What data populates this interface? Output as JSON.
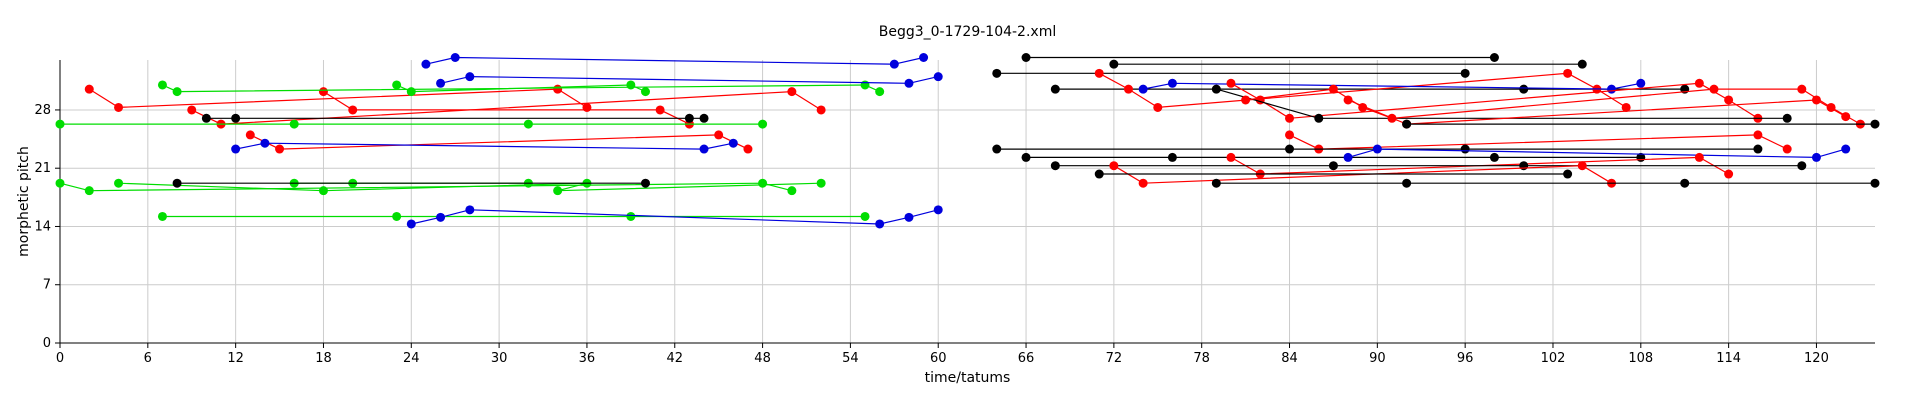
{
  "chart_data": {
    "type": "scatter",
    "title": "Begg3_0-1729-104-2.xml",
    "xlabel": "time/tatums",
    "ylabel": "morphetic pitch",
    "xlim": [
      0,
      124
    ],
    "ylim": [
      0,
      34
    ],
    "xticks": [
      0,
      6,
      12,
      18,
      24,
      30,
      36,
      42,
      48,
      54,
      60,
      66,
      72,
      78,
      84,
      90,
      96,
      102,
      108,
      114,
      120
    ],
    "yticks": [
      0,
      7,
      14,
      21,
      28
    ],
    "grid": true,
    "colors": {
      "red": "#ff0000",
      "green": "#00dd00",
      "blue": "#0000dd",
      "black": "#000000"
    },
    "series": [
      {
        "color": "red",
        "points": [
          [
            2,
            30.5
          ],
          [
            4,
            28.3
          ],
          [
            34,
            30.5
          ],
          [
            36,
            28.3
          ]
        ]
      },
      {
        "color": "red",
        "points": [
          [
            9,
            28
          ],
          [
            11,
            26.3
          ],
          [
            50,
            30.2
          ],
          [
            52,
            28
          ]
        ]
      },
      {
        "color": "red",
        "points": [
          [
            18,
            30.2
          ],
          [
            20,
            28
          ],
          [
            41,
            28
          ],
          [
            43,
            26.3
          ]
        ]
      },
      {
        "color": "red",
        "points": [
          [
            13,
            25
          ],
          [
            15,
            23.3
          ],
          [
            45,
            25
          ],
          [
            47,
            23.3
          ]
        ]
      },
      {
        "color": "green",
        "points": [
          [
            7,
            31
          ],
          [
            8,
            30.2
          ],
          [
            55,
            31
          ],
          [
            56,
            30.2
          ]
        ]
      },
      {
        "color": "green",
        "points": [
          [
            23,
            31
          ],
          [
            24,
            30.2
          ],
          [
            39,
            31
          ],
          [
            40,
            30.2
          ]
        ]
      },
      {
        "color": "green",
        "points": [
          [
            0,
            26.3
          ],
          [
            16,
            26.3
          ],
          [
            32,
            26.3
          ],
          [
            48,
            26.3
          ]
        ]
      },
      {
        "color": "green",
        "points": [
          [
            0,
            19.2
          ],
          [
            2,
            18.3
          ],
          [
            48,
            19.2
          ],
          [
            50,
            18.3
          ]
        ]
      },
      {
        "color": "green",
        "points": [
          [
            4,
            19.2
          ],
          [
            18,
            18.3
          ],
          [
            36,
            19.2
          ],
          [
            34,
            18.3
          ],
          [
            52,
            19.2
          ]
        ]
      },
      {
        "color": "green",
        "points": [
          [
            16,
            19.2
          ],
          [
            20,
            19.2
          ],
          [
            32,
            19.2
          ]
        ]
      },
      {
        "color": "green",
        "points": [
          [
            7,
            15.2
          ],
          [
            23,
            15.2
          ],
          [
            39,
            15.2
          ],
          [
            55,
            15.2
          ]
        ]
      },
      {
        "color": "black",
        "points": [
          [
            10,
            27
          ],
          [
            12,
            27
          ],
          [
            43,
            27
          ],
          [
            44,
            27
          ]
        ]
      },
      {
        "color": "black",
        "points": [
          [
            8,
            19.2
          ],
          [
            40,
            19.2
          ]
        ]
      },
      {
        "color": "blue",
        "points": [
          [
            25,
            33.5
          ],
          [
            27,
            34.3
          ],
          [
            57,
            33.5
          ],
          [
            59,
            34.3
          ]
        ]
      },
      {
        "color": "blue",
        "points": [
          [
            26,
            31.2
          ],
          [
            28,
            32
          ],
          [
            58,
            31.2
          ],
          [
            60,
            32
          ]
        ]
      },
      {
        "color": "blue",
        "points": [
          [
            12,
            23.3
          ],
          [
            14,
            24
          ],
          [
            44,
            23.3
          ],
          [
            46,
            24
          ]
        ]
      },
      {
        "color": "blue",
        "points": [
          [
            24,
            14.3
          ],
          [
            26,
            15.1
          ],
          [
            28,
            16
          ],
          [
            56,
            14.3
          ],
          [
            58,
            15.1
          ],
          [
            60,
            16
          ]
        ]
      },
      {
        "color": "black",
        "points": [
          [
            66,
            34.3
          ],
          [
            98,
            34.3
          ]
        ]
      },
      {
        "color": "black",
        "points": [
          [
            72,
            33.5
          ],
          [
            104,
            33.5
          ]
        ]
      },
      {
        "color": "black",
        "points": [
          [
            64,
            32.4
          ],
          [
            96,
            32.4
          ]
        ]
      },
      {
        "color": "black",
        "points": [
          [
            68,
            30.5
          ],
          [
            100,
            30.5
          ],
          [
            111,
            30.5
          ]
        ]
      },
      {
        "color": "red",
        "points": [
          [
            71,
            32.4
          ],
          [
            73,
            30.5
          ],
          [
            75,
            28.3
          ],
          [
            103,
            32.4
          ],
          [
            105,
            30.5
          ],
          [
            107,
            28.3
          ]
        ]
      },
      {
        "color": "blue",
        "points": [
          [
            74,
            30.5
          ],
          [
            76,
            31.2
          ],
          [
            106,
            30.5
          ],
          [
            108,
            31.2
          ]
        ]
      },
      {
        "color": "red",
        "points": [
          [
            80,
            31.2
          ],
          [
            82,
            29.2
          ],
          [
            84,
            27
          ],
          [
            112,
            31.2
          ],
          [
            114,
            29.2
          ],
          [
            116,
            27
          ]
        ]
      },
      {
        "color": "black",
        "points": [
          [
            79,
            30.5
          ],
          [
            86,
            27
          ],
          [
            118,
            27
          ]
        ]
      },
      {
        "color": "red",
        "points": [
          [
            81,
            29.2
          ],
          [
            87,
            30.5
          ],
          [
            89,
            28.3
          ],
          [
            91,
            27
          ],
          [
            113,
            30.5
          ],
          [
            119,
            30.5
          ],
          [
            121,
            28.3
          ],
          [
            123,
            26.3
          ]
        ]
      },
      {
        "color": "red",
        "points": [
          [
            88,
            29.2
          ],
          [
            92,
            26.3
          ],
          [
            120,
            29.2
          ],
          [
            122,
            27.2
          ]
        ]
      },
      {
        "color": "black",
        "points": [
          [
            92,
            26.3
          ],
          [
            124,
            26.3
          ]
        ]
      },
      {
        "color": "red",
        "points": [
          [
            84,
            25
          ],
          [
            86,
            23.3
          ],
          [
            116,
            25
          ],
          [
            118,
            23.3
          ]
        ]
      },
      {
        "color": "black",
        "points": [
          [
            64,
            23.3
          ],
          [
            84,
            23.3
          ],
          [
            96,
            23.3
          ],
          [
            116,
            23.3
          ]
        ]
      },
      {
        "color": "black",
        "points": [
          [
            66,
            22.3
          ],
          [
            76,
            22.3
          ],
          [
            98,
            22.3
          ],
          [
            108,
            22.3
          ]
        ]
      },
      {
        "color": "blue",
        "points": [
          [
            88,
            22.3
          ],
          [
            90,
            23.3
          ],
          [
            120,
            22.3
          ],
          [
            122,
            23.3
          ]
        ]
      },
      {
        "color": "red",
        "points": [
          [
            80,
            22.3
          ],
          [
            82,
            20.3
          ],
          [
            112,
            22.3
          ],
          [
            114,
            20.3
          ]
        ]
      },
      {
        "color": "black",
        "points": [
          [
            68,
            21.3
          ],
          [
            87,
            21.3
          ],
          [
            100,
            21.3
          ],
          [
            119,
            21.3
          ]
        ]
      },
      {
        "color": "red",
        "points": [
          [
            72,
            21.3
          ],
          [
            74,
            19.2
          ],
          [
            104,
            21.3
          ],
          [
            106,
            19.2
          ]
        ]
      },
      {
        "color": "black",
        "points": [
          [
            71,
            20.3
          ],
          [
            103,
            20.3
          ]
        ]
      },
      {
        "color": "black",
        "points": [
          [
            79,
            19.2
          ],
          [
            92,
            19.2
          ],
          [
            111,
            19.2
          ],
          [
            124,
            19.2
          ]
        ]
      }
    ]
  }
}
